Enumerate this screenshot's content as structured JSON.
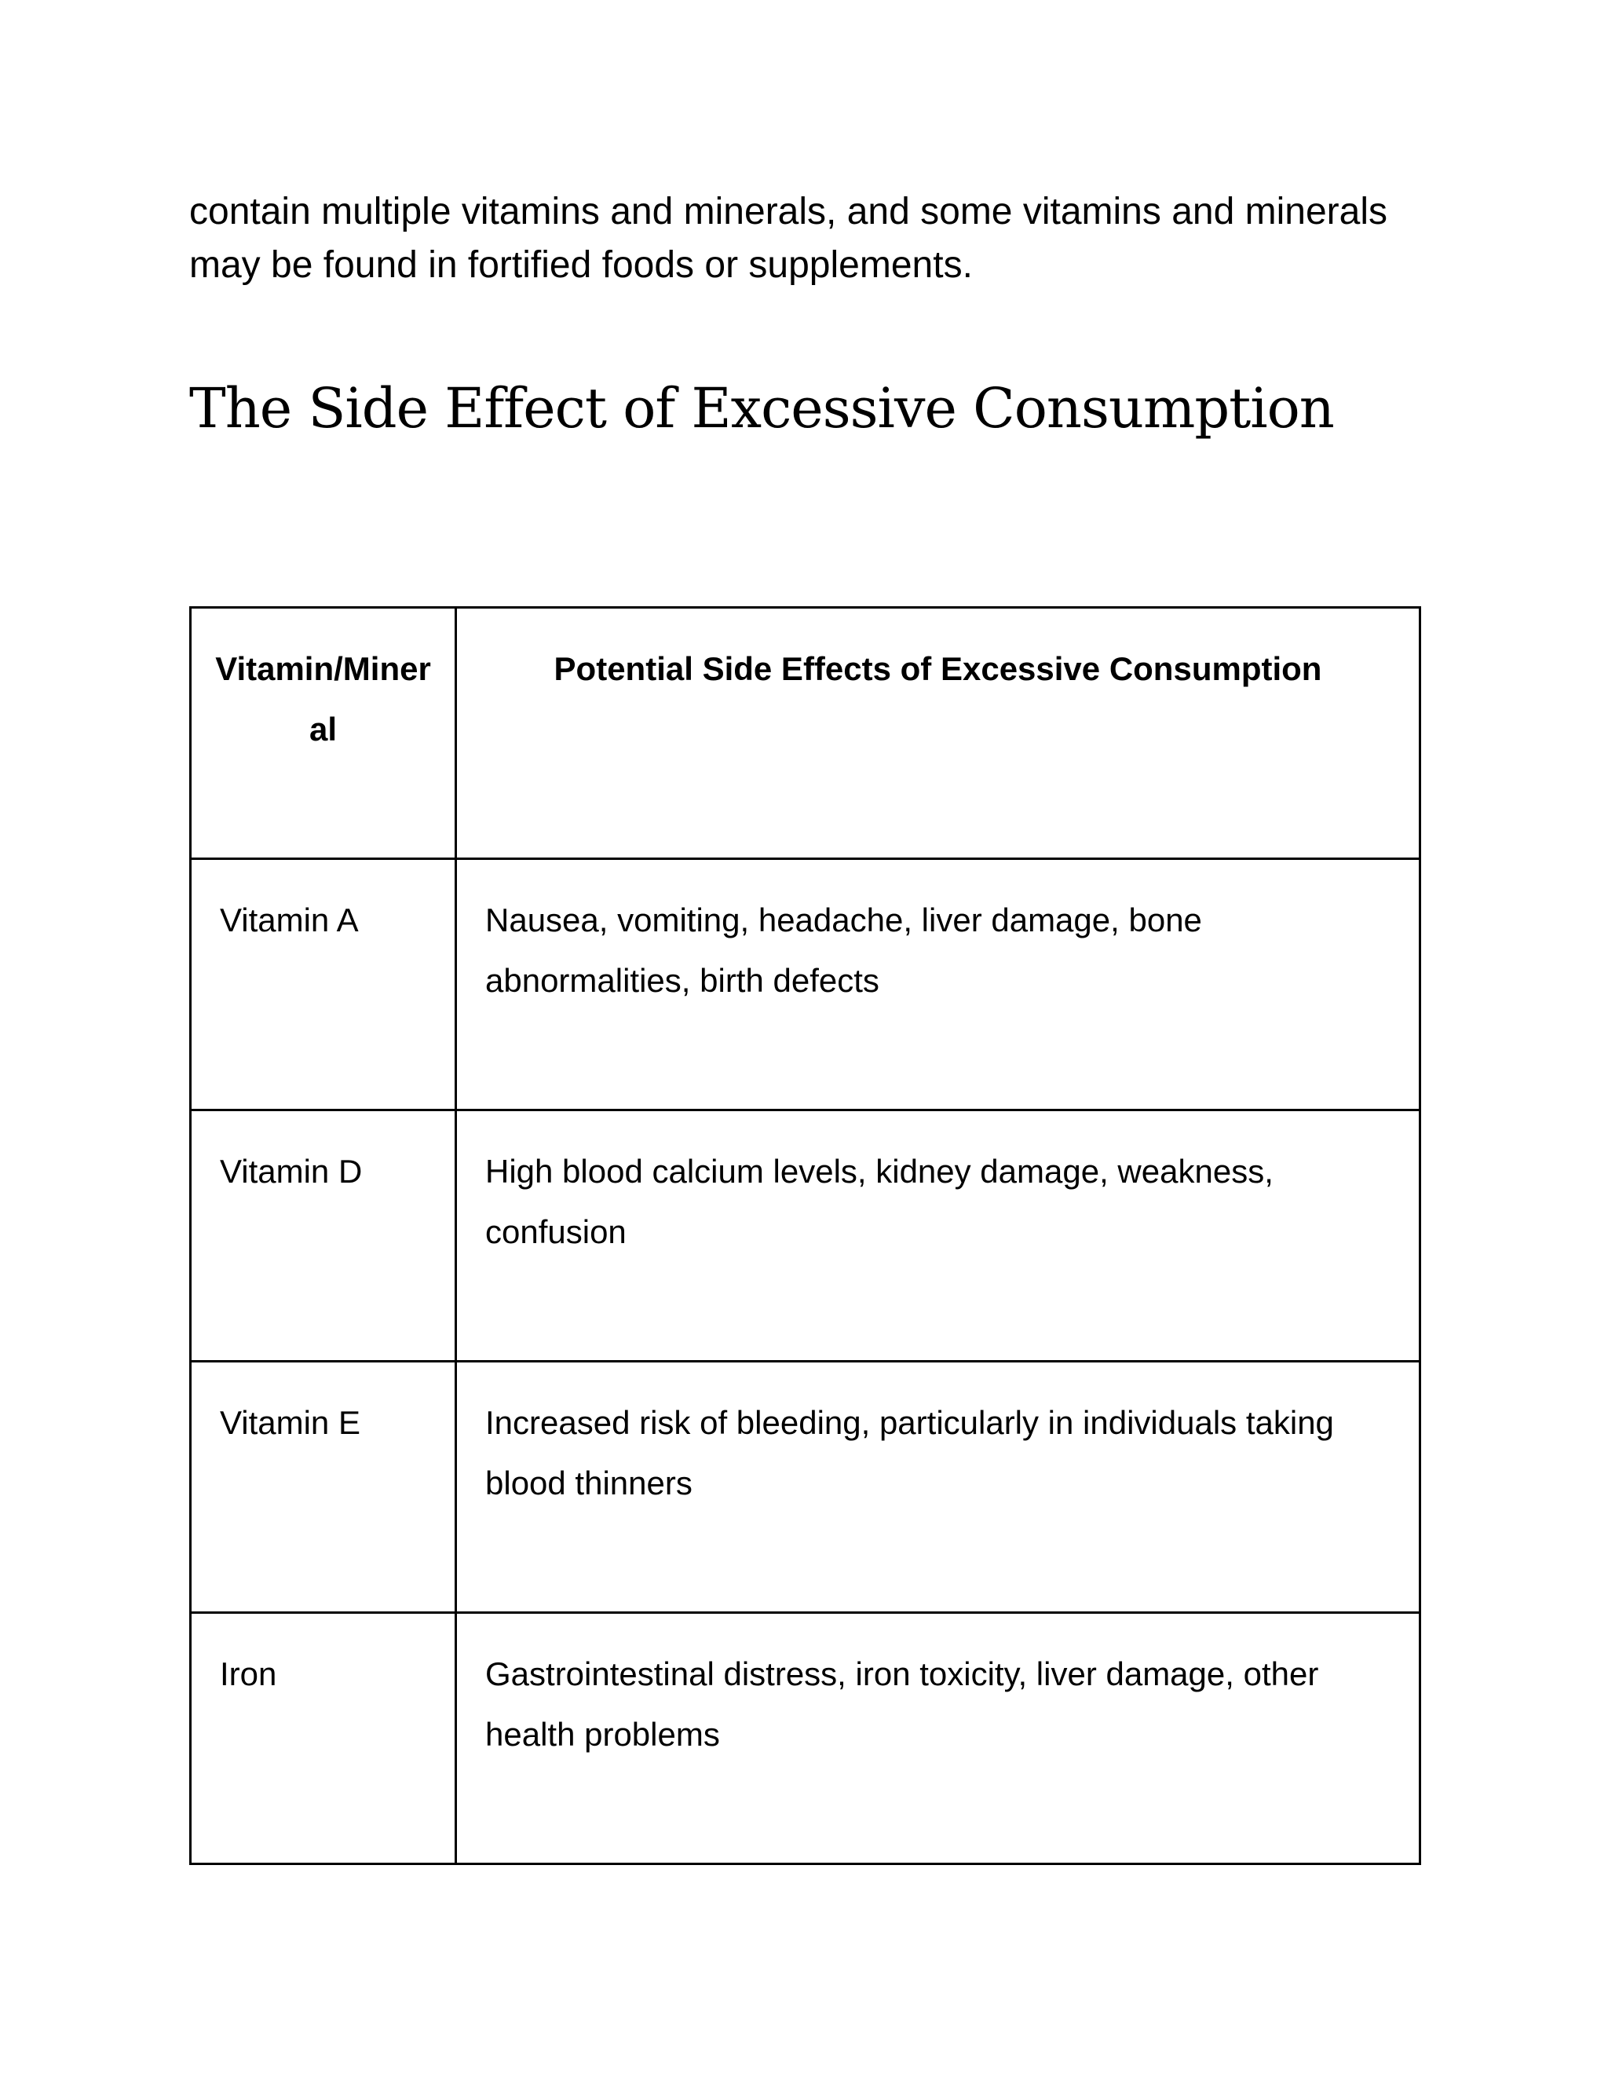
{
  "intro_text": "contain multiple vitamins and minerals, and some vitamins and minerals may be found in fortified foods or supplements.",
  "heading": "The Side Effect of Excessive Consumption",
  "table": {
    "headers": [
      "Vitamin/Mineral",
      "Potential Side Effects of Excessive Consumption"
    ],
    "rows": [
      {
        "nutrient": "Vitamin A",
        "effects": "Nausea, vomiting, headache, liver damage, bone abnormalities, birth defects"
      },
      {
        "nutrient": "Vitamin D",
        "effects": "High blood calcium levels, kidney damage, weakness, confusion"
      },
      {
        "nutrient": "Vitamin E",
        "effects": "Increased risk of bleeding, particularly in individuals taking blood thinners"
      },
      {
        "nutrient": "Iron",
        "effects": "Gastrointestinal distress, iron toxicity, liver damage, other health problems"
      }
    ]
  }
}
